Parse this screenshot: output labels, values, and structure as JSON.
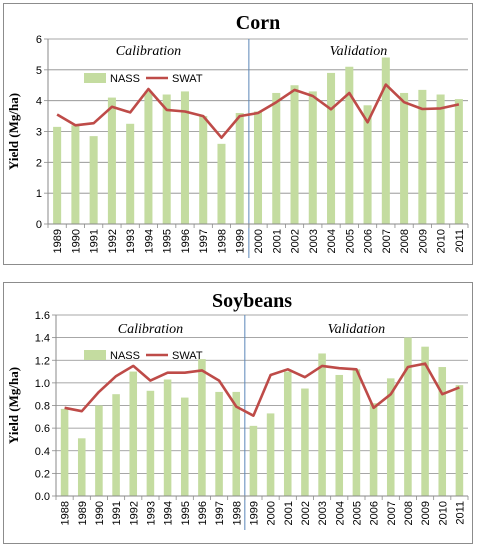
{
  "chart_data": [
    {
      "type": "bar",
      "title": "Corn",
      "xlabel": "",
      "ylabel": "Yield (Mg/ha)",
      "ylim": [
        0,
        6
      ],
      "yticks": [
        "0",
        "1",
        "2",
        "3",
        "4",
        "5",
        "6"
      ],
      "grid": true,
      "legend_position": "top-left",
      "annotations": [
        "Calibration",
        "Validation"
      ],
      "divider_after": "1999",
      "categories": [
        "1989",
        "1990",
        "1991",
        "1992",
        "1993",
        "1994",
        "1995",
        "1996",
        "1997",
        "1998",
        "1999",
        "2000",
        "2001",
        "2002",
        "2003",
        "2004",
        "2005",
        "2006",
        "2007",
        "2008",
        "2009",
        "2010",
        "2011"
      ],
      "series": [
        {
          "name": "NASS",
          "type": "bar",
          "color": "#c4dca0",
          "values": [
            3.15,
            3.2,
            2.85,
            4.1,
            3.25,
            4.3,
            4.2,
            4.3,
            3.5,
            2.6,
            3.6,
            3.65,
            4.25,
            4.5,
            4.3,
            4.9,
            5.1,
            3.85,
            5.4,
            4.25,
            4.35,
            4.2,
            4.05
          ]
        },
        {
          "name": "SWAT",
          "type": "line",
          "color": "#be4b48",
          "values": [
            3.55,
            3.2,
            3.27,
            3.8,
            3.62,
            4.38,
            3.7,
            3.65,
            3.5,
            2.8,
            3.5,
            3.6,
            3.95,
            4.35,
            4.15,
            3.72,
            4.25,
            3.3,
            4.52,
            3.95,
            3.73,
            3.75,
            3.88
          ]
        }
      ]
    },
    {
      "type": "bar",
      "title": "Soybeans",
      "xlabel": "",
      "ylabel": "Yield (Mg/ha)",
      "ylim": [
        0,
        1.6
      ],
      "yticks": [
        "0.0",
        "0.2",
        "0.4",
        "0.6",
        "0.8",
        "1.0",
        "1.2",
        "1.4",
        "1.6"
      ],
      "grid": true,
      "legend_position": "top-left",
      "annotations": [
        "Calibration",
        "Validation"
      ],
      "divider_after": "1998",
      "categories": [
        "1988",
        "1989",
        "1990",
        "1991",
        "1992",
        "1993",
        "1994",
        "1995",
        "1996",
        "1997",
        "1998",
        "1999",
        "2000",
        "2001",
        "2002",
        "2003",
        "2004",
        "2005",
        "2006",
        "2007",
        "2008",
        "2009",
        "2010",
        "2011"
      ],
      "series": [
        {
          "name": "NASS",
          "type": "bar",
          "color": "#c4dca0",
          "values": [
            0.77,
            0.51,
            0.8,
            0.9,
            1.1,
            0.93,
            1.03,
            0.87,
            1.21,
            0.92,
            0.92,
            0.62,
            0.73,
            1.1,
            0.95,
            1.26,
            1.07,
            1.12,
            0.82,
            1.04,
            1.4,
            1.32,
            1.14,
            0.98
          ]
        },
        {
          "name": "SWAT",
          "type": "line",
          "color": "#be4b48",
          "values": [
            0.78,
            0.75,
            0.92,
            1.06,
            1.15,
            1.02,
            1.09,
            1.09,
            1.11,
            1.02,
            0.79,
            0.71,
            1.07,
            1.12,
            1.05,
            1.15,
            1.13,
            1.12,
            0.78,
            0.9,
            1.14,
            1.17,
            0.9,
            0.96
          ]
        }
      ]
    }
  ]
}
